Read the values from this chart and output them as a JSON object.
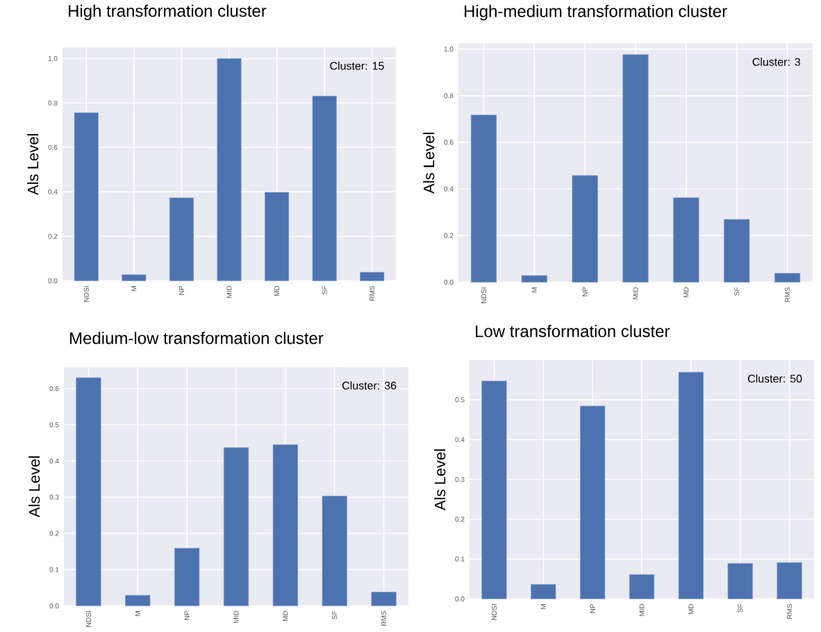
{
  "chart_data": [
    {
      "type": "bar",
      "title": "High transformation cluster",
      "ylabel": "Als Level",
      "categories": [
        "NDSI",
        "M",
        "NP",
        "MID",
        "MD",
        "SF",
        "RMS"
      ],
      "values": [
        0.756,
        0.027,
        0.373,
        1.0,
        0.398,
        0.831,
        0.038
      ],
      "color": "#4c72b0",
      "ylim": [
        0,
        1.05
      ],
      "yticks": [
        {
          "value": 0,
          "label": "0.0"
        },
        {
          "value": 0.2,
          "label": "0.2"
        },
        {
          "value": 0.4,
          "label": "0.4"
        },
        {
          "value": 0.6,
          "label": "0.6"
        },
        {
          "value": 0.8,
          "label": "0.8"
        },
        {
          "value": 1.0,
          "label": "1.0"
        }
      ],
      "grid": true,
      "annotations": [
        "Cluster: 15"
      ]
    },
    {
      "type": "bar",
      "title": "High-medium transformation cluster",
      "ylabel": "Als Level",
      "categories": [
        "NDSI",
        "M",
        "NP",
        "MID",
        "MD",
        "SF",
        "RMS"
      ],
      "values": [
        0.717,
        0.028,
        0.457,
        0.976,
        0.362,
        0.269,
        0.038
      ],
      "color": "#4c72b0",
      "ylim": [
        0,
        1.025
      ],
      "yticks": [
        {
          "value": 0,
          "label": "0.0"
        },
        {
          "value": 0.2,
          "label": "0.2"
        },
        {
          "value": 0.4,
          "label": "0.4"
        },
        {
          "value": 0.6,
          "label": "0.6"
        },
        {
          "value": 0.8,
          "label": "0.8"
        },
        {
          "value": 1.0,
          "label": "1.0"
        }
      ],
      "grid": true,
      "annotations": [
        "Cluster: 3"
      ]
    },
    {
      "type": "bar",
      "title": "Medium-low transformation cluster",
      "ylabel": "Als Level",
      "categories": [
        "NDSI",
        "M",
        "NP",
        "MID",
        "MD",
        "SF",
        "RMS"
      ],
      "values": [
        0.63,
        0.029,
        0.159,
        0.437,
        0.445,
        0.303,
        0.038
      ],
      "color": "#4c72b0",
      "ylim": [
        0,
        0.66
      ],
      "yticks": [
        {
          "value": 0,
          "label": "0.0"
        },
        {
          "value": 0.1,
          "label": "0.1"
        },
        {
          "value": 0.2,
          "label": "0.2"
        },
        {
          "value": 0.3,
          "label": "0.3"
        },
        {
          "value": 0.4,
          "label": "0.4"
        },
        {
          "value": 0.5,
          "label": "0.5"
        },
        {
          "value": 0.6,
          "label": "0.6"
        }
      ],
      "grid": true,
      "annotations": [
        "Cluster: 36"
      ]
    },
    {
      "type": "bar",
      "title": "Low transformation cluster",
      "ylabel": "Als Level",
      "categories": [
        "NDSI",
        "M",
        "NP",
        "MID",
        "MD",
        "SF",
        "RMS"
      ],
      "values": [
        0.547,
        0.036,
        0.484,
        0.061,
        0.569,
        0.089,
        0.091
      ],
      "color": "#4c72b0",
      "ylim": [
        0,
        0.6
      ],
      "yticks": [
        {
          "value": 0,
          "label": "0.0"
        },
        {
          "value": 0.1,
          "label": "0.1"
        },
        {
          "value": 0.2,
          "label": "0.2"
        },
        {
          "value": 0.3,
          "label": "0.3"
        },
        {
          "value": 0.4,
          "label": "0.4"
        },
        {
          "value": 0.5,
          "label": "0.5"
        }
      ],
      "grid": true,
      "annotations": [
        "Cluster: 50"
      ]
    }
  ]
}
